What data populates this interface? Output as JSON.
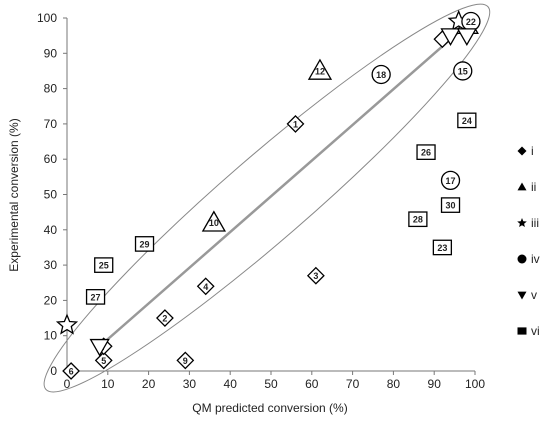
{
  "chart_data": {
    "type": "scatter",
    "title": "",
    "xlabel": "QM predicted conversion (%)",
    "ylabel": "Experimental conversion (%)",
    "xlim": [
      0,
      100
    ],
    "ylim": [
      0,
      100
    ],
    "xticks": [
      "0",
      "10",
      "20",
      "30",
      "40",
      "50",
      "60",
      "70",
      "80",
      "90",
      "100"
    ],
    "yticks": [
      "0",
      "10",
      "20",
      "30",
      "40",
      "50",
      "60",
      "70",
      "80",
      "90",
      "100"
    ],
    "grid": false,
    "legend_position": "right",
    "series": [
      {
        "name": "i",
        "marker": "diamond",
        "points": [
          {
            "label": "1",
            "x": 56,
            "y": 70
          },
          {
            "label": "2",
            "x": 24,
            "y": 15
          },
          {
            "label": "3",
            "x": 61,
            "y": 27
          },
          {
            "label": "4",
            "x": 34,
            "y": 24
          },
          {
            "label": "5",
            "x": 9,
            "y": 3
          },
          {
            "label": "6",
            "x": 1,
            "y": 0
          },
          {
            "label": "9",
            "x": 29,
            "y": 3
          },
          {
            "label": "7",
            "x": 9,
            "y": 7
          },
          {
            "label": "",
            "x": 92,
            "y": 94
          }
        ]
      },
      {
        "name": "ii",
        "marker": "triangle",
        "points": [
          {
            "label": "12",
            "x": 62,
            "y": 85
          },
          {
            "label": "10",
            "x": 36,
            "y": 42
          },
          {
            "label": "",
            "x": 98,
            "y": 98
          }
        ]
      },
      {
        "name": "iii",
        "marker": "star",
        "points": [
          {
            "label": "",
            "x": 0,
            "y": 13
          },
          {
            "label": "",
            "x": 96,
            "y": 99
          }
        ]
      },
      {
        "name": "iv",
        "marker": "circle",
        "points": [
          {
            "label": "18",
            "x": 77,
            "y": 84
          },
          {
            "label": "15",
            "x": 97,
            "y": 85
          },
          {
            "label": "17",
            "x": 94,
            "y": 54
          },
          {
            "label": "22",
            "x": 99,
            "y": 99
          }
        ]
      },
      {
        "name": "v",
        "marker": "triangle-down",
        "points": [
          {
            "label": "",
            "x": 8,
            "y": 7
          },
          {
            "label": "",
            "x": 94,
            "y": 95
          },
          {
            "label": "",
            "x": 98,
            "y": 95
          }
        ]
      },
      {
        "name": "vi",
        "marker": "square",
        "points": [
          {
            "label": "24",
            "x": 98,
            "y": 71
          },
          {
            "label": "26",
            "x": 88,
            "y": 62
          },
          {
            "label": "30",
            "x": 94,
            "y": 47
          },
          {
            "label": "28",
            "x": 86,
            "y": 43
          },
          {
            "label": "23",
            "x": 92,
            "y": 35
          },
          {
            "label": "29",
            "x": 19,
            "y": 36
          },
          {
            "label": "25",
            "x": 9,
            "y": 30
          },
          {
            "label": "27",
            "x": 7,
            "y": 21
          }
        ]
      }
    ],
    "trend_line": {
      "from": [
        8,
        7
      ],
      "to": [
        96,
        96
      ],
      "color": "#999999"
    },
    "enclosure_ellipse": {
      "color": "#888888"
    }
  }
}
